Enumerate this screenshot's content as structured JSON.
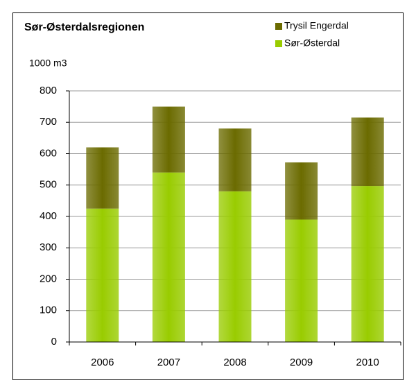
{
  "chart_data": {
    "type": "stacked_bar",
    "title": "Sør-Østerdalsregionen",
    "y_label": "1000 m3",
    "categories": [
      "2006",
      "2007",
      "2008",
      "2009",
      "2010"
    ],
    "series": [
      {
        "name": "Sør-Østerdal",
        "color": "#99cc00",
        "values": [
          425,
          540,
          480,
          390,
          497
        ]
      },
      {
        "name": "Trysil Engerdal",
        "color": "#6b6b00",
        "values": [
          195,
          210,
          200,
          182,
          218
        ]
      }
    ],
    "ylim": [
      0,
      800
    ],
    "yticks": [
      0,
      100,
      200,
      300,
      400,
      500,
      600,
      700,
      800
    ],
    "grid": true,
    "legend": "top-right"
  }
}
